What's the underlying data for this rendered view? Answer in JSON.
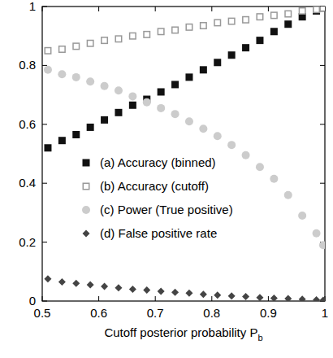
{
  "chart_data": {
    "type": "scatter",
    "x_label": "Cutoff posterior probability Pb",
    "x": [
      0.51,
      0.535,
      0.56,
      0.585,
      0.61,
      0.635,
      0.66,
      0.685,
      0.71,
      0.735,
      0.76,
      0.785,
      0.81,
      0.835,
      0.86,
      0.885,
      0.91,
      0.935,
      0.96,
      0.985,
      0.997
    ],
    "xlim": [
      0.5,
      1
    ],
    "xticks": [
      0.5,
      0.6,
      0.7,
      0.8,
      0.9,
      1
    ],
    "ylim": [
      0,
      1
    ],
    "yticks": [
      0,
      0.2,
      0.4,
      0.6,
      0.8,
      1
    ],
    "grid": false,
    "legend": "left",
    "series": [
      {
        "name": "(a) Accuracy (binned)",
        "color": "#111111",
        "marker": "square",
        "values": [
          0.52,
          0.545,
          0.565,
          0.59,
          0.615,
          0.64,
          0.665,
          0.685,
          0.71,
          0.735,
          0.76,
          0.785,
          0.81,
          0.835,
          0.86,
          0.885,
          0.915,
          0.94,
          0.965,
          0.985,
          0.995
        ]
      },
      {
        "name": "(b) Accuracy (cutoff)",
        "color": "#999999",
        "marker": "open-square",
        "values": [
          0.85,
          0.855,
          0.865,
          0.875,
          0.885,
          0.89,
          0.9,
          0.905,
          0.915,
          0.92,
          0.93,
          0.935,
          0.945,
          0.95,
          0.955,
          0.965,
          0.97,
          0.975,
          0.985,
          0.99,
          0.995
        ]
      },
      {
        "name": "(c) Power (True positive)",
        "color": "#cccccc",
        "marker": "circle",
        "values": [
          0.785,
          0.77,
          0.76,
          0.745,
          0.73,
          0.715,
          0.695,
          0.675,
          0.655,
          0.635,
          0.61,
          0.585,
          0.56,
          0.53,
          0.495,
          0.455,
          0.415,
          0.36,
          0.29,
          0.23,
          0.19
        ]
      },
      {
        "name": "(d) False positive rate",
        "color": "#444444",
        "marker": "diamond",
        "values": [
          0.075,
          0.065,
          0.06,
          0.055,
          0.05,
          0.045,
          0.04,
          0.037,
          0.033,
          0.03,
          0.027,
          0.023,
          0.02,
          0.017,
          0.015,
          0.012,
          0.01,
          0.008,
          0.006,
          0.004,
          0.003
        ]
      }
    ]
  }
}
